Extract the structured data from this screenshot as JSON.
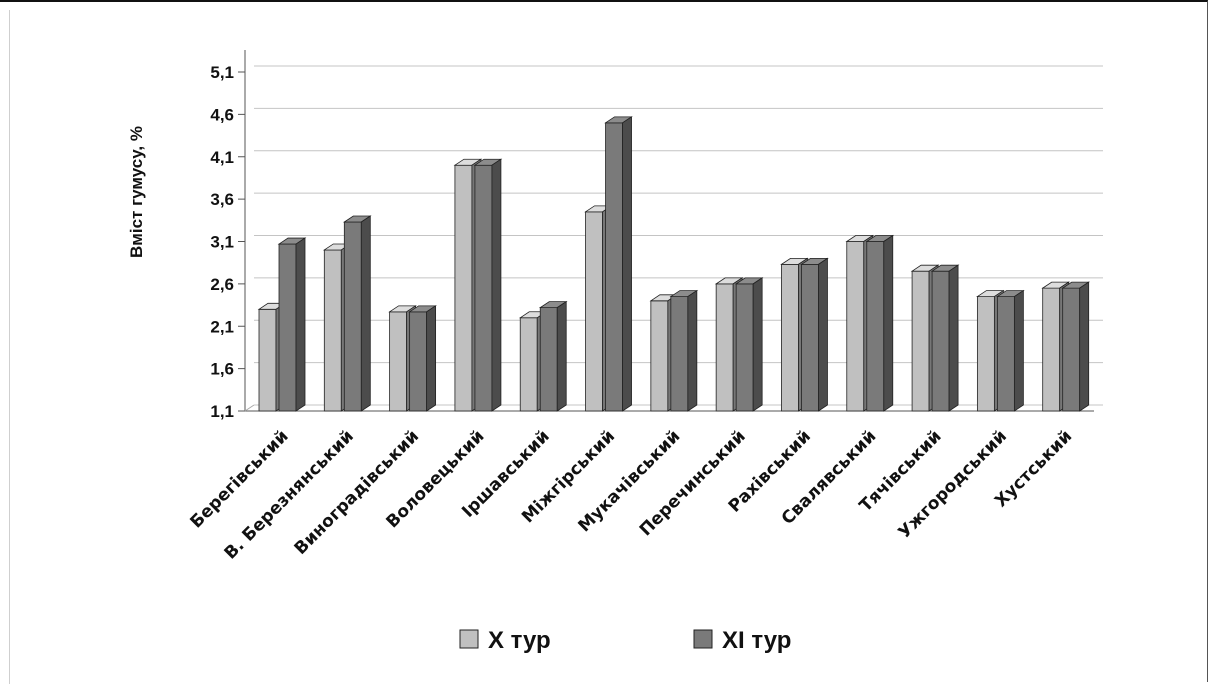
{
  "chart_data": {
    "type": "bar",
    "title": "",
    "ylabel": "Вміст гумусу, %",
    "xlabel": "",
    "ylim": [
      1.1,
      5.1
    ],
    "yticks": [
      "1,1",
      "1,6",
      "2,1",
      "2,6",
      "3,1",
      "3,6",
      "4,1",
      "4,6",
      "5,1"
    ],
    "grid": "horizontal",
    "legend_position": "bottom",
    "categories": [
      "Берегівський",
      "В. Березнянський",
      "Виноградівський",
      "Воловецький",
      "Іршавський",
      "Міжгірський",
      "Мукачівський",
      "Перечинський",
      "Рахівський",
      "Свалявський",
      "Тячівський",
      "Ужгородський",
      "Хустський"
    ],
    "series": [
      {
        "name": "Х тур",
        "color": "#c0c0c0",
        "values": [
          2.3,
          3.0,
          2.27,
          4.0,
          2.2,
          3.45,
          2.4,
          2.6,
          2.83,
          3.1,
          2.75,
          2.45,
          2.55
        ]
      },
      {
        "name": "ХІ тур",
        "color": "#7a7a7a",
        "values": [
          3.07,
          3.33,
          2.27,
          4.0,
          2.32,
          4.5,
          2.45,
          2.6,
          2.83,
          3.1,
          2.75,
          2.45,
          2.55
        ]
      }
    ]
  }
}
